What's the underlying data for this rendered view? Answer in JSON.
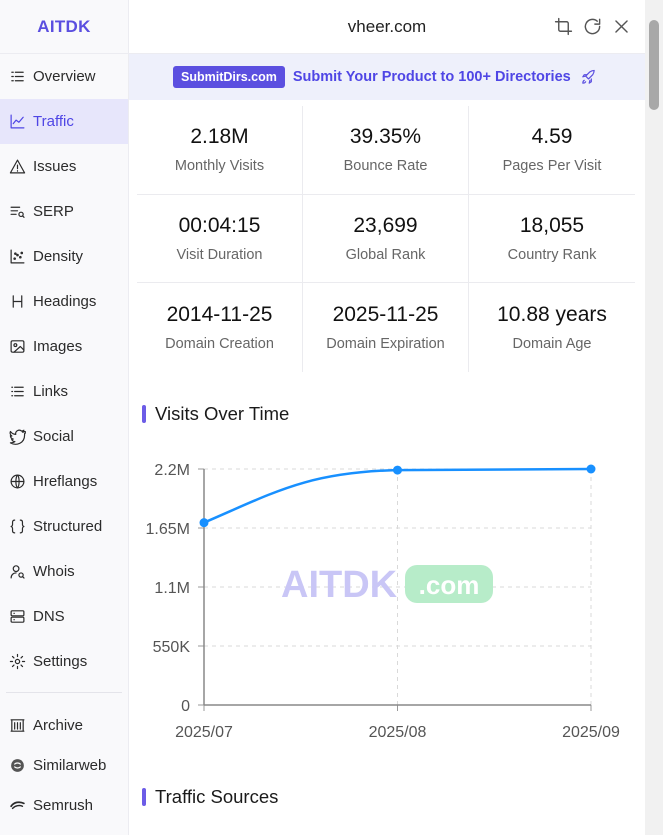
{
  "brand": "AITDK",
  "domain": "vheer.com",
  "promo": {
    "badge": "SubmitDirs.com",
    "text": "Submit Your Product to 100+ Directories"
  },
  "nav": [
    {
      "label": "Overview",
      "icon": "list-icon"
    },
    {
      "label": "Traffic",
      "icon": "trend-icon",
      "active": true
    },
    {
      "label": "Issues",
      "icon": "warning-icon"
    },
    {
      "label": "SERP",
      "icon": "serp-icon"
    },
    {
      "label": "Density",
      "icon": "scatter-icon"
    },
    {
      "label": "Headings",
      "icon": "heading-icon"
    },
    {
      "label": "Images",
      "icon": "image-icon"
    },
    {
      "label": "Links",
      "icon": "links-icon"
    },
    {
      "label": "Social",
      "icon": "twitter-icon"
    },
    {
      "label": "Hreflangs",
      "icon": "globe-icon"
    },
    {
      "label": "Structured",
      "icon": "braces-icon"
    },
    {
      "label": "Whois",
      "icon": "user-search-icon"
    },
    {
      "label": "DNS",
      "icon": "server-icon"
    },
    {
      "label": "Settings",
      "icon": "gear-icon"
    }
  ],
  "external": [
    {
      "label": "Archive",
      "icon": "archive-icon"
    },
    {
      "label": "Similarweb",
      "icon": "similarweb-icon"
    },
    {
      "label": "Semrush",
      "icon": "semrush-icon"
    }
  ],
  "stats": [
    {
      "value": "2.18M",
      "label": "Monthly Visits"
    },
    {
      "value": "39.35%",
      "label": "Bounce Rate"
    },
    {
      "value": "4.59",
      "label": "Pages Per Visit"
    },
    {
      "value": "00:04:15",
      "label": "Visit Duration"
    },
    {
      "value": "23,699",
      "label": "Global Rank"
    },
    {
      "value": "18,055",
      "label": "Country Rank"
    },
    {
      "value": "2014-11-25",
      "label": "Domain Creation"
    },
    {
      "value": "2025-11-25",
      "label": "Domain Expiration"
    },
    {
      "value": "10.88 years",
      "label": "Domain Age"
    }
  ],
  "sections": {
    "visits": "Visits Over Time",
    "sources": "Traffic Sources"
  },
  "watermark": {
    "left": "AITDK",
    "right": ".com"
  },
  "colors": {
    "accent": "#5b4fe0",
    "line": "#1890ff"
  },
  "chart_data": {
    "type": "line",
    "x": [
      "2025/07",
      "2025/08",
      "2025/09"
    ],
    "series": [
      {
        "values": [
          1700000,
          2190000,
          2200000
        ]
      }
    ],
    "ylim": [
      0,
      2200000
    ],
    "yticks": [
      0,
      550000,
      1100000,
      1650000,
      2200000
    ],
    "ytick_labels": [
      "0",
      "550K",
      "1.1M",
      "1.65M",
      "2.2M"
    ],
    "grid": true
  }
}
